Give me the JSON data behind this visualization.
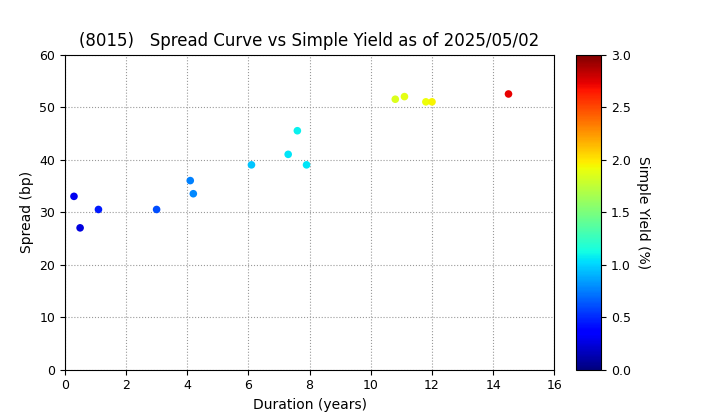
{
  "title": "(8015)   Spread Curve vs Simple Yield as of 2025/05/02",
  "xlabel": "Duration (years)",
  "ylabel": "Spread (bp)",
  "colorbar_label": "Simple Yield (%)",
  "xlim": [
    0,
    16
  ],
  "ylim": [
    0,
    60
  ],
  "xticks": [
    0,
    2,
    4,
    6,
    8,
    10,
    12,
    14,
    16
  ],
  "yticks": [
    0,
    10,
    20,
    30,
    40,
    50,
    60
  ],
  "colorbar_min": 0.0,
  "colorbar_max": 3.0,
  "points": [
    {
      "duration": 0.3,
      "spread": 33.0,
      "yield": 0.3
    },
    {
      "duration": 0.5,
      "spread": 27.0,
      "yield": 0.25
    },
    {
      "duration": 1.1,
      "spread": 30.5,
      "yield": 0.45
    },
    {
      "duration": 3.0,
      "spread": 30.5,
      "yield": 0.6
    },
    {
      "duration": 4.1,
      "spread": 36.0,
      "yield": 0.75
    },
    {
      "duration": 4.2,
      "spread": 33.5,
      "yield": 0.78
    },
    {
      "duration": 6.1,
      "spread": 39.0,
      "yield": 0.95
    },
    {
      "duration": 7.3,
      "spread": 41.0,
      "yield": 1.05
    },
    {
      "duration": 7.6,
      "spread": 45.5,
      "yield": 1.08
    },
    {
      "duration": 7.9,
      "spread": 39.0,
      "yield": 1.05
    },
    {
      "duration": 10.8,
      "spread": 51.5,
      "yield": 1.85
    },
    {
      "duration": 11.1,
      "spread": 52.0,
      "yield": 1.88
    },
    {
      "duration": 11.8,
      "spread": 51.0,
      "yield": 1.92
    },
    {
      "duration": 12.0,
      "spread": 51.0,
      "yield": 1.95
    },
    {
      "duration": 14.5,
      "spread": 52.5,
      "yield": 2.72
    }
  ],
  "background_color": "#ffffff",
  "grid_color": "#999999",
  "marker_size": 30,
  "title_fontsize": 12,
  "label_fontsize": 10,
  "tick_fontsize": 9
}
